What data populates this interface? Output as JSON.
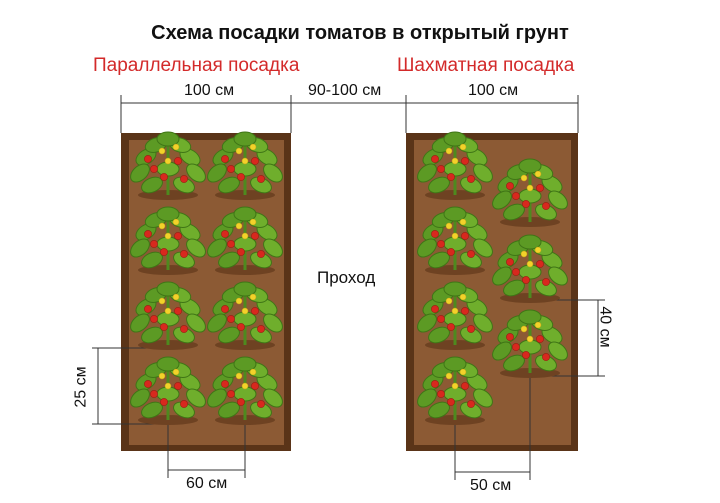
{
  "title": "Схема посадки томатов в открытый грунт",
  "left_scheme": {
    "label": "Параллельная посадка",
    "width_label": "100 см",
    "row_spacing_label": "25 см",
    "plant_spacing_label": "60 см"
  },
  "right_scheme": {
    "label": "Шахматная посадка",
    "width_label": "100 см",
    "row_spacing_label": "40 см",
    "plant_spacing_label": "50 см"
  },
  "gap_label": "90-100 см",
  "aisle_label": "Проход",
  "colors": {
    "title_red": "#d32a2a",
    "soil": "#8c5a34",
    "soil_dark": "#5a3418",
    "leaf": "#6fae2c",
    "tomato": "#d8281e",
    "flower": "#f2d22a"
  }
}
